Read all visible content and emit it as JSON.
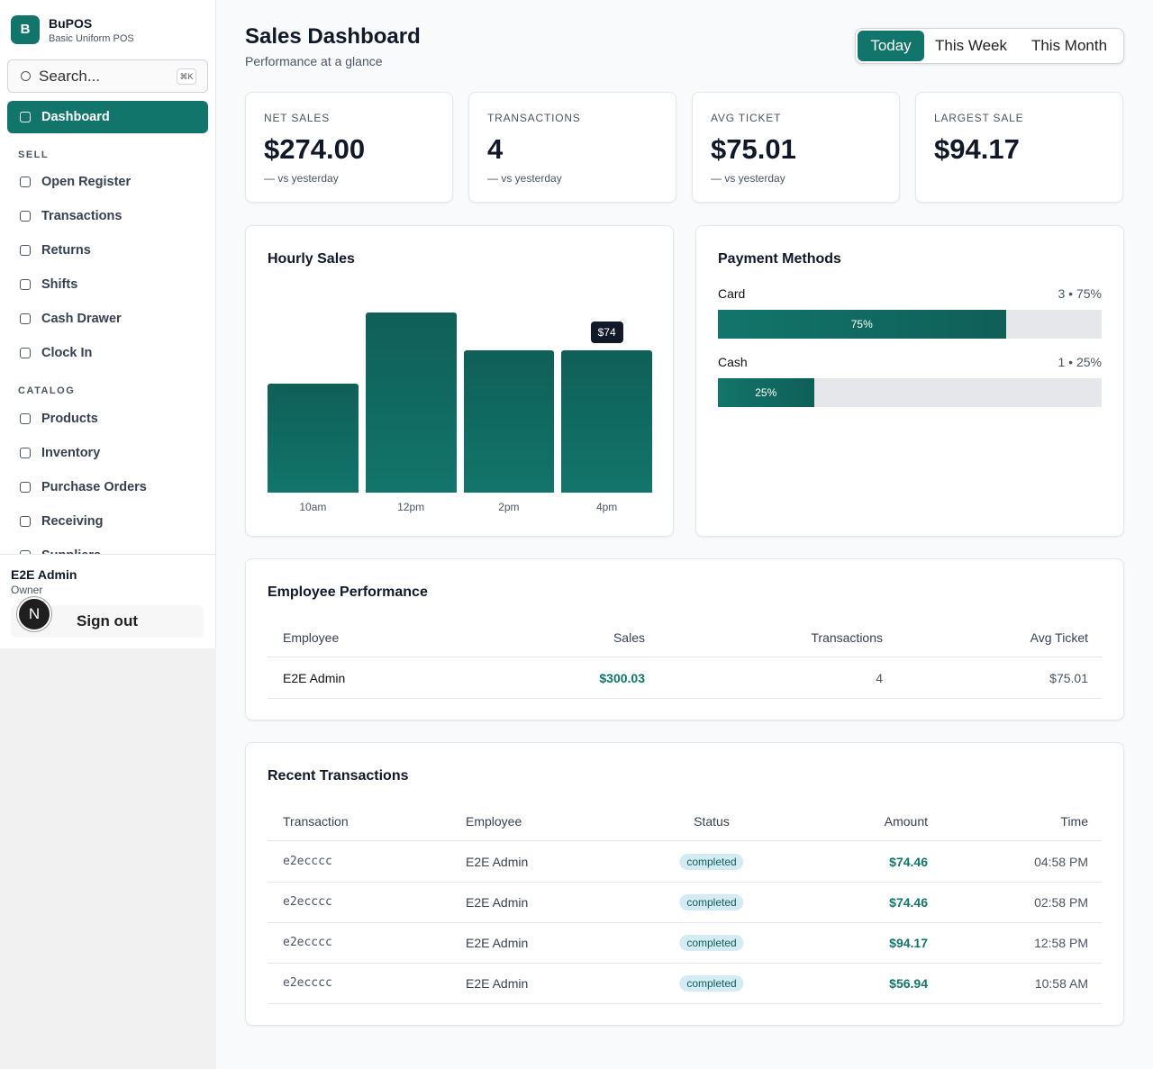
{
  "sidebar": {
    "logo": "B",
    "brand": "BuPOS",
    "tagline": "Basic Uniform POS",
    "search": {
      "placeholder": "Search...",
      "shortcut": "⌘K"
    },
    "nav": [
      {
        "label": "Dashboard",
        "active": true
      }
    ],
    "sections": [
      {
        "title": "SELL",
        "items": [
          "Open Register",
          "Transactions",
          "Returns",
          "Shifts",
          "Cash Drawer",
          "Clock In"
        ]
      },
      {
        "title": "CATALOG",
        "items": [
          "Products",
          "Inventory",
          "Purchase Orders",
          "Receiving",
          "Suppliers"
        ]
      }
    ],
    "user": {
      "name": "E2E Admin",
      "role": "Owner",
      "avatar": "N",
      "sign_out": "Sign out"
    }
  },
  "header": {
    "title": "Sales Dashboard",
    "subtitle": "Performance at a glance",
    "ranges": [
      "Today",
      "This Week",
      "This Month"
    ],
    "active_range": 0
  },
  "kpis": [
    {
      "label": "NET SALES",
      "value": "$274.00",
      "note": "— vs yesterday"
    },
    {
      "label": "TRANSACTIONS",
      "value": "4",
      "note": "— vs yesterday"
    },
    {
      "label": "AVG TICKET",
      "value": "$75.01",
      "note": "— vs yesterday"
    },
    {
      "label": "LARGEST SALE",
      "value": "$94.17"
    }
  ],
  "hourly_sales": {
    "title": "Hourly Sales",
    "categories": [
      "10am",
      "12pm",
      "2pm",
      "4pm"
    ],
    "values": [
      56.94,
      94.17,
      74.46,
      74.46
    ],
    "value_labels": [
      null,
      null,
      null,
      "$74"
    ],
    "color": "#12756b"
  },
  "payment_methods": {
    "title": "Payment Methods",
    "methods": [
      {
        "name": "Card",
        "count": 3,
        "percent": 75,
        "summary_label": "3 • 75%",
        "percent_label": "75%"
      },
      {
        "name": "Cash",
        "count": 1,
        "percent": 25,
        "summary_label": "1 • 25%",
        "percent_label": "25%"
      }
    ]
  },
  "employee_performance": {
    "title": "Employee Performance",
    "columns": [
      "Employee",
      "Sales",
      "Transactions",
      "Avg Ticket"
    ],
    "rows": [
      [
        "E2E Admin",
        "$300.03",
        "4",
        "$75.01"
      ]
    ]
  },
  "recent_transactions": {
    "title": "Recent Transactions",
    "columns": [
      "Transaction",
      "Employee",
      "Status",
      "Amount",
      "Time"
    ],
    "rows": [
      [
        "e2ecccc",
        "E2E Admin",
        "completed",
        "$74.46",
        "04:58 PM"
      ],
      [
        "e2ecccc",
        "E2E Admin",
        "completed",
        "$74.46",
        "02:58 PM"
      ],
      [
        "e2ecccc",
        "E2E Admin",
        "completed",
        "$94.17",
        "12:58 PM"
      ],
      [
        "e2ecccc",
        "E2E Admin",
        "completed",
        "$56.94",
        "10:58 AM"
      ]
    ]
  }
}
